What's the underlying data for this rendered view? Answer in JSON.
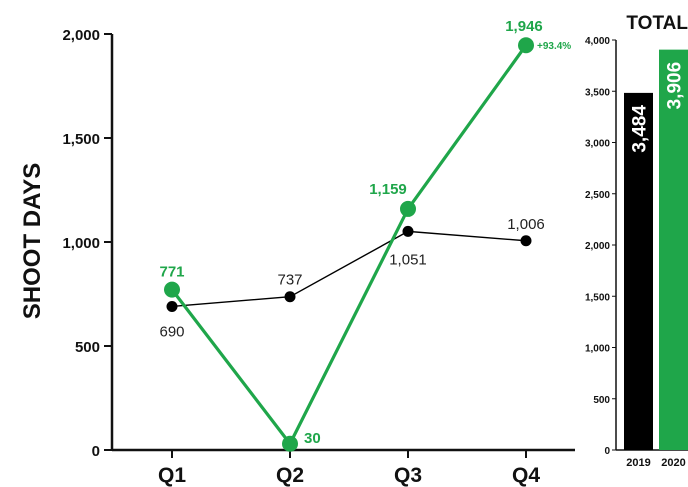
{
  "colors": {
    "series_2020": "#1fa64a",
    "series_2019": "#000000",
    "axis": "#111111"
  },
  "chart_data": [
    {
      "type": "line",
      "ylabel": "SHOOT DAYS",
      "xlabel": "",
      "categories": [
        "Q1",
        "Q2",
        "Q3",
        "Q4"
      ],
      "ylim": [
        0,
        2000
      ],
      "yticks": [
        0,
        500,
        1000,
        1500,
        2000
      ],
      "ytick_labels": [
        "0",
        "500",
        "1,000",
        "1,500",
        "2,000"
      ],
      "series": [
        {
          "key": "y2019",
          "values": [
            690,
            737,
            1051,
            1006
          ],
          "labels": [
            "690",
            "737",
            "1,051",
            "1,006"
          ]
        },
        {
          "key": "y2020",
          "values": [
            771,
            30,
            1159,
            1946
          ],
          "labels": [
            "771",
            "30",
            "1,159",
            "1,946"
          ]
        }
      ],
      "annotations": [
        {
          "text": "+93.4%",
          "category": "Q4"
        }
      ],
      "grid": false
    },
    {
      "type": "bar",
      "title": "TOTAL",
      "categories": [
        "2019",
        "2020"
      ],
      "values": [
        3484,
        3906
      ],
      "value_labels": [
        "3,484",
        "3,906"
      ],
      "ylim": [
        0,
        4000
      ],
      "yticks": [
        0,
        500,
        1000,
        1500,
        2000,
        2500,
        3000,
        3500,
        4000
      ],
      "ytick_labels": [
        "0",
        "500",
        "1,000",
        "1,500",
        "2,000",
        "2,500",
        "3,000",
        "3,500",
        "4,000"
      ]
    }
  ]
}
